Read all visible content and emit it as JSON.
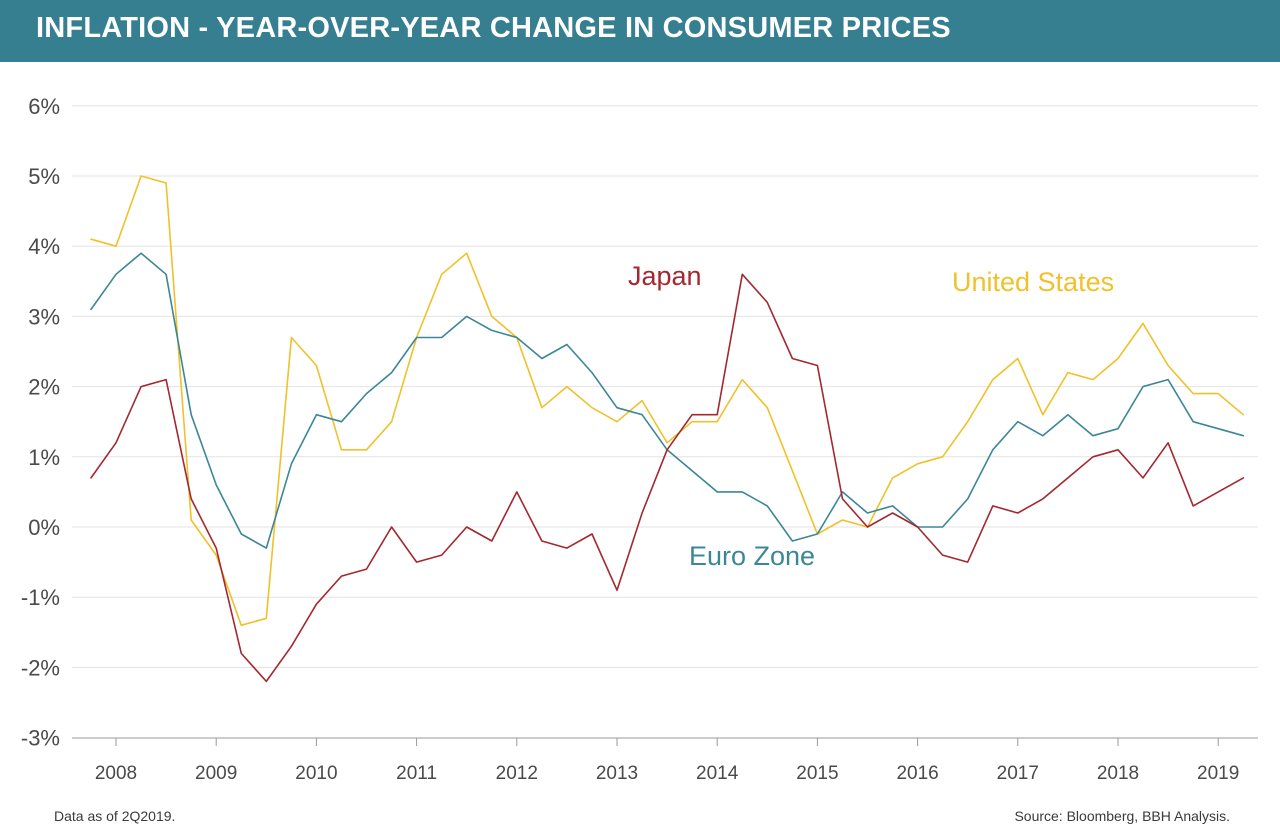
{
  "header": {
    "title": "INFLATION - YEAR-OVER-YEAR CHANGE IN CONSUMER PRICES"
  },
  "footer": {
    "note": "Data as of 2Q2019.",
    "source": "Source: Bloomberg, BBH Analysis."
  },
  "colors": {
    "header_bg": "#357f90",
    "japan": "#a3282f",
    "united_states": "#f0c12a",
    "euro_zone": "#3c8797",
    "grid": "#e3e3e3",
    "text": "#4a4a4a"
  },
  "chart_data": {
    "type": "line",
    "title": "INFLATION - YEAR-OVER-YEAR CHANGE IN CONSUMER PRICES",
    "xlabel": "",
    "ylabel": "",
    "x_start": 2007.75,
    "x_step": 0.25,
    "xlim": [
      2007.5,
      2019.6
    ],
    "ylim": [
      -3,
      6
    ],
    "yticks": [
      6,
      5,
      4,
      3,
      2,
      1,
      0,
      -1,
      -2,
      -3
    ],
    "ytick_labels": [
      "6%",
      "5%",
      "4%",
      "3%",
      "2%",
      "1%",
      "0%",
      "-1%",
      "-2%",
      "-3%"
    ],
    "xticks": [
      2008,
      2009,
      2010,
      2011,
      2012,
      2013,
      2014,
      2015,
      2016,
      2017,
      2018,
      2019
    ],
    "xtick_labels": [
      "2008",
      "2009",
      "2010",
      "2011",
      "2012",
      "2013",
      "2014",
      "2015",
      "2016",
      "2017",
      "2018",
      "2019"
    ],
    "grid": true,
    "series": [
      {
        "name": "United States",
        "label": "United States",
        "color": "#f0c12a",
        "values": [
          4.1,
          4.0,
          5.0,
          4.9,
          0.1,
          -0.4,
          -1.4,
          -1.3,
          2.7,
          2.3,
          1.1,
          1.1,
          1.5,
          2.7,
          3.6,
          3.9,
          3.0,
          2.7,
          1.7,
          2.0,
          1.7,
          1.5,
          1.8,
          1.2,
          1.5,
          1.5,
          2.1,
          1.7,
          0.8,
          -0.1,
          0.1,
          0.0,
          0.7,
          0.9,
          1.0,
          1.5,
          2.1,
          2.4,
          1.6,
          2.2,
          2.1,
          2.4,
          2.9,
          2.3,
          1.9,
          1.9,
          1.6
        ]
      },
      {
        "name": "Euro Zone",
        "label": "Euro Zone",
        "color": "#3c8797",
        "values": [
          3.1,
          3.6,
          3.9,
          3.6,
          1.6,
          0.6,
          -0.1,
          -0.3,
          0.9,
          1.6,
          1.5,
          1.9,
          2.2,
          2.7,
          2.7,
          3.0,
          2.8,
          2.7,
          2.4,
          2.6,
          2.2,
          1.7,
          1.6,
          1.1,
          0.8,
          0.5,
          0.5,
          0.3,
          -0.2,
          -0.1,
          0.5,
          0.2,
          0.3,
          0.0,
          0.0,
          0.4,
          1.1,
          1.5,
          1.3,
          1.6,
          1.3,
          1.4,
          2.0,
          2.1,
          1.5,
          1.4,
          1.3
        ]
      },
      {
        "name": "Japan",
        "label": "Japan",
        "color": "#a3282f",
        "values": [
          0.7,
          1.2,
          2.0,
          2.1,
          0.4,
          -0.3,
          -1.8,
          -2.2,
          -1.7,
          -1.1,
          -0.7,
          -0.6,
          0.0,
          -0.5,
          -0.4,
          0.0,
          -0.2,
          0.5,
          -0.2,
          -0.3,
          -0.1,
          -0.9,
          0.2,
          1.1,
          1.6,
          1.6,
          3.6,
          3.2,
          2.4,
          2.3,
          0.4,
          0.0,
          0.2,
          0.0,
          -0.4,
          -0.5,
          0.3,
          0.2,
          0.4,
          0.7,
          1.0,
          1.1,
          0.7,
          1.2,
          0.3,
          0.5,
          0.7
        ]
      }
    ]
  }
}
